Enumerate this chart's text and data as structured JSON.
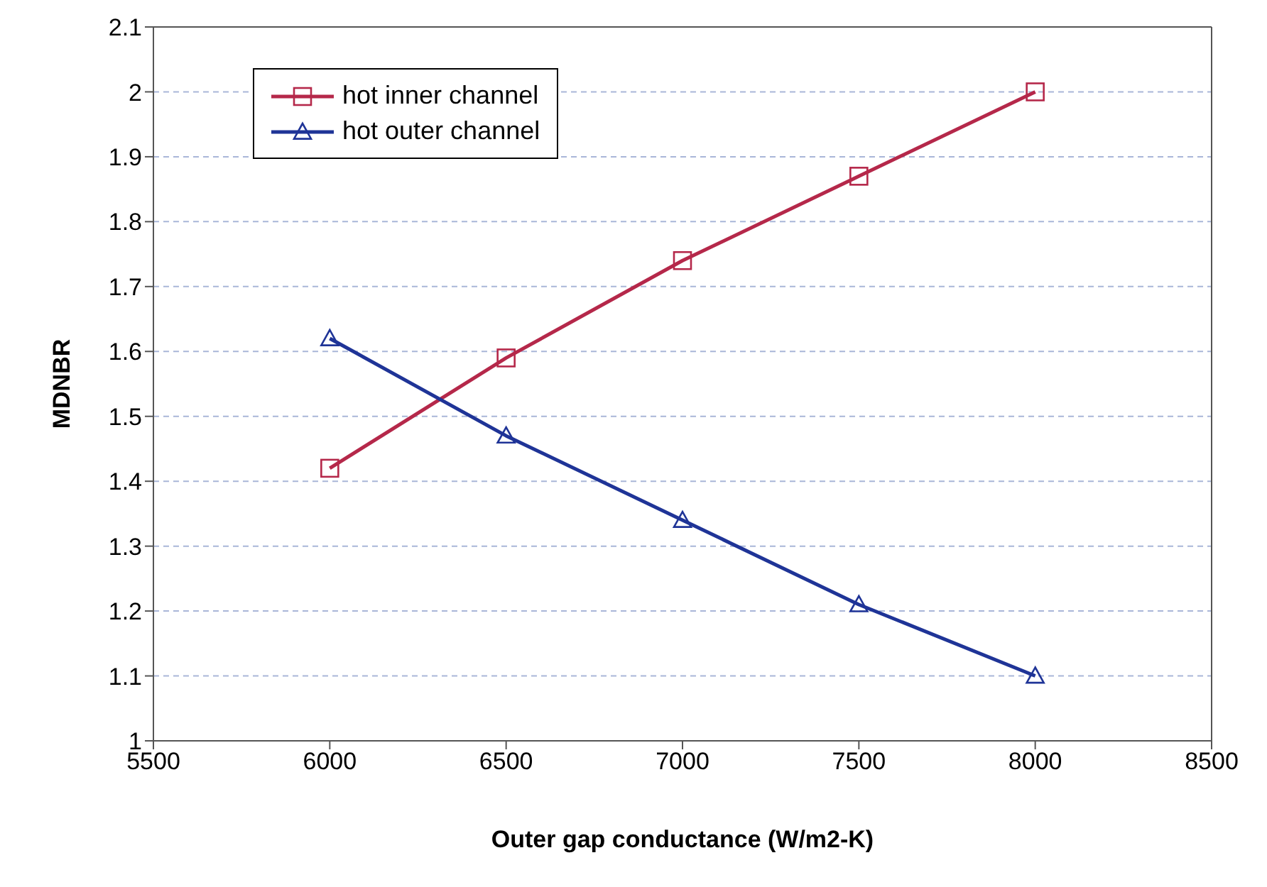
{
  "chart_data": {
    "type": "line",
    "xlabel": "Outer gap conductance (W/m2-K)",
    "ylabel": "MDNBR",
    "xlim": [
      5500,
      8500
    ],
    "xticks": [
      5500,
      6000,
      6500,
      7000,
      7500,
      8000,
      8500
    ],
    "ylim": [
      1,
      2.1
    ],
    "yticks": [
      1,
      1.1,
      1.2,
      1.3,
      1.4,
      1.5,
      1.6,
      1.7,
      1.8,
      1.9,
      2,
      2.1
    ],
    "x": [
      6000,
      6500,
      7000,
      7500,
      8000
    ],
    "series": [
      {
        "name": "hot inner channel",
        "color": "#b5284a",
        "marker": "square",
        "values": [
          1.42,
          1.59,
          1.74,
          1.87,
          2.0
        ]
      },
      {
        "name": "hot outer channel",
        "color": "#1f3497",
        "marker": "triangle",
        "values": [
          1.62,
          1.47,
          1.34,
          1.21,
          1.1
        ]
      }
    ],
    "grid": "y",
    "legend": "top left",
    "line_style": "solid"
  }
}
